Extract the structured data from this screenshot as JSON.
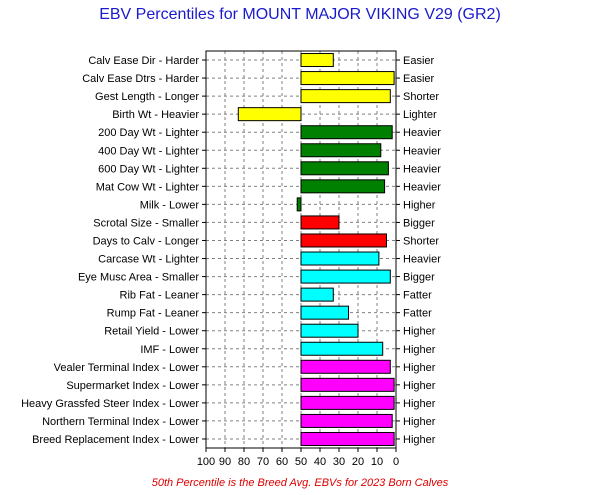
{
  "chart_data": {
    "type": "bar",
    "orientation": "horizontal",
    "title": "EBV Percentiles for MOUNT MAJOR VIKING V29 (GR2)",
    "footer": "50th Percentile is the Breed Avg. EBVs for 2023 Born Calves",
    "xlim": [
      100,
      0
    ],
    "x_ticks": [
      "100",
      "90",
      "80",
      "70",
      "60",
      "50",
      "40",
      "30",
      "20",
      "10",
      "0"
    ],
    "baseline": 50,
    "grid": true,
    "colors": {
      "yellow": "#ffff00",
      "green": "#008000",
      "red": "#ff0000",
      "cyan": "#00ffff",
      "magenta": "#ff00ff"
    },
    "rows": [
      {
        "label": "Calv Ease Dir - Harder",
        "right_label": "Easier",
        "value": 33,
        "color": "yellow"
      },
      {
        "label": "Calv Ease Dtrs - Harder",
        "right_label": "Easier",
        "value": 1,
        "color": "yellow"
      },
      {
        "label": "Gest Length - Longer",
        "right_label": "Shorter",
        "value": 3,
        "color": "yellow"
      },
      {
        "label": "Birth Wt - Heavier",
        "right_label": "Lighter",
        "value": 83,
        "color": "yellow"
      },
      {
        "label": "200 Day Wt - Lighter",
        "right_label": "Heavier",
        "value": 2,
        "color": "green"
      },
      {
        "label": "400 Day Wt - Lighter",
        "right_label": "Heavier",
        "value": 8,
        "color": "green"
      },
      {
        "label": "600 Day Wt - Lighter",
        "right_label": "Heavier",
        "value": 4,
        "color": "green"
      },
      {
        "label": "Mat Cow Wt - Lighter",
        "right_label": "Heavier",
        "value": 6,
        "color": "green"
      },
      {
        "label": "Milk - Lower",
        "right_label": "Higher",
        "value": 52,
        "color": "green"
      },
      {
        "label": "Scrotal Size - Smaller",
        "right_label": "Bigger",
        "value": 30,
        "color": "red"
      },
      {
        "label": "Days to Calv - Longer",
        "right_label": "Shorter",
        "value": 5,
        "color": "red"
      },
      {
        "label": "Carcase Wt - Lighter",
        "right_label": "Heavier",
        "value": 9,
        "color": "cyan"
      },
      {
        "label": "Eye Musc Area - Smaller",
        "right_label": "Bigger",
        "value": 3,
        "color": "cyan"
      },
      {
        "label": "Rib Fat - Leaner",
        "right_label": "Fatter",
        "value": 33,
        "color": "cyan"
      },
      {
        "label": "Rump Fat - Leaner",
        "right_label": "Fatter",
        "value": 25,
        "color": "cyan"
      },
      {
        "label": "Retail Yield - Lower",
        "right_label": "Higher",
        "value": 20,
        "color": "cyan"
      },
      {
        "label": "IMF - Lower",
        "right_label": "Higher",
        "value": 7,
        "color": "cyan"
      },
      {
        "label": "Vealer Terminal Index - Lower",
        "right_label": "Higher",
        "value": 3,
        "color": "magenta"
      },
      {
        "label": "Supermarket Index - Lower",
        "right_label": "Higher",
        "value": 1,
        "color": "magenta"
      },
      {
        "label": "Heavy Grassfed Steer Index - Lower",
        "right_label": "Higher",
        "value": 1,
        "color": "magenta"
      },
      {
        "label": "Northern Terminal Index - Lower",
        "right_label": "Higher",
        "value": 2,
        "color": "magenta"
      },
      {
        "label": "Breed Replacement Index - Lower",
        "right_label": "Higher",
        "value": 1,
        "color": "magenta"
      }
    ]
  }
}
